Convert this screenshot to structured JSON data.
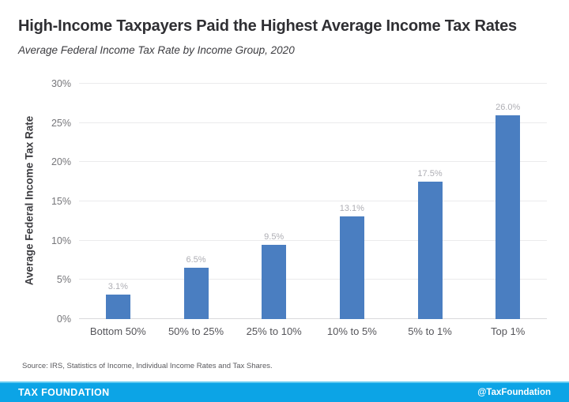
{
  "header": {
    "title": "High-Income Taxpayers Paid the Highest Average Income Tax Rates",
    "subtitle": "Average Federal Income Tax Rate by Income Group, 2020"
  },
  "chart_data": {
    "type": "bar",
    "title": "High-Income Taxpayers Paid the Highest Average Income Tax Rates",
    "subtitle": "Average Federal Income Tax Rate by Income Group, 2020",
    "categories": [
      "Bottom 50%",
      "50% to 25%",
      "25% to 10%",
      "10% to 5%",
      "5% to 1%",
      "Top 1%"
    ],
    "values": [
      3.1,
      6.5,
      9.5,
      13.1,
      17.5,
      26.0
    ],
    "value_labels": [
      "3.1%",
      "6.5%",
      "9.5%",
      "13.1%",
      "17.5%",
      "26.0%"
    ],
    "xlabel": "",
    "ylabel": "Average Federal Income Tax Rate",
    "ylim": [
      0,
      30
    ],
    "y_ticks": [
      0,
      5,
      10,
      15,
      20,
      25,
      30
    ],
    "y_tick_labels": [
      "0%",
      "5%",
      "10%",
      "15%",
      "20%",
      "25%",
      "30%"
    ],
    "grid": true,
    "legend": false,
    "bar_color": "#4a7ec1",
    "value_label_color": "#aeaeb4",
    "gridline_color": "#ebebec"
  },
  "footer": {
    "source": "Source: IRS, Statistics of Income, Individual Income Rates and Tax Shares.",
    "brand": "TAX FOUNDATION",
    "handle": "@TaxFoundation",
    "bar_color": "#0ca4e6"
  }
}
